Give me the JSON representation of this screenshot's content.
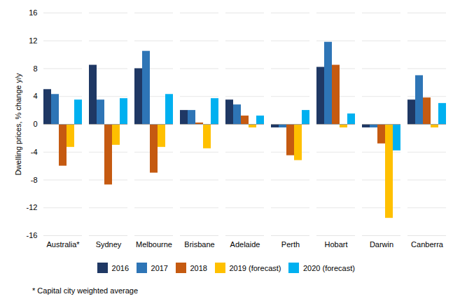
{
  "chart_data": {
    "type": "bar",
    "categories": [
      "Australia*",
      "Sydney",
      "Melbourne",
      "Brisbane",
      "Adelaide",
      "Perth",
      "Hobart",
      "Darwin",
      "Canberra"
    ],
    "series": [
      {
        "name": "2016",
        "color": "#1f3864",
        "values": [
          5.0,
          8.5,
          8.0,
          2.0,
          3.5,
          -0.5,
          8.2,
          -0.5,
          3.5
        ]
      },
      {
        "name": "2017",
        "color": "#2e75b6",
        "values": [
          4.3,
          3.5,
          10.5,
          2.0,
          2.8,
          -0.5,
          11.8,
          -0.5,
          7.0
        ]
      },
      {
        "name": "2018",
        "color": "#c55a11",
        "values": [
          -6.0,
          -8.7,
          -7.0,
          0.2,
          1.2,
          -4.5,
          8.5,
          -2.8,
          3.8
        ]
      },
      {
        "name": "2019 (forecast)",
        "color": "#ffc000",
        "values": [
          -3.3,
          -3.0,
          -3.3,
          -3.5,
          -0.5,
          -5.2,
          -0.5,
          -13.5,
          -0.5
        ]
      },
      {
        "name": "2020 (forecast)",
        "color": "#00b0f0",
        "values": [
          3.5,
          3.7,
          4.3,
          3.7,
          1.2,
          2.0,
          1.5,
          -3.8,
          3.0
        ]
      }
    ],
    "ylabel": "Dwelling prices, % change y/y",
    "ylim": [
      -16,
      16
    ],
    "yticks": [
      -16,
      -12,
      -8,
      -4,
      0,
      4,
      8,
      12,
      16
    ],
    "grid": true,
    "legend": "bottom",
    "annotations": [
      "* Capital city weighted average"
    ]
  }
}
